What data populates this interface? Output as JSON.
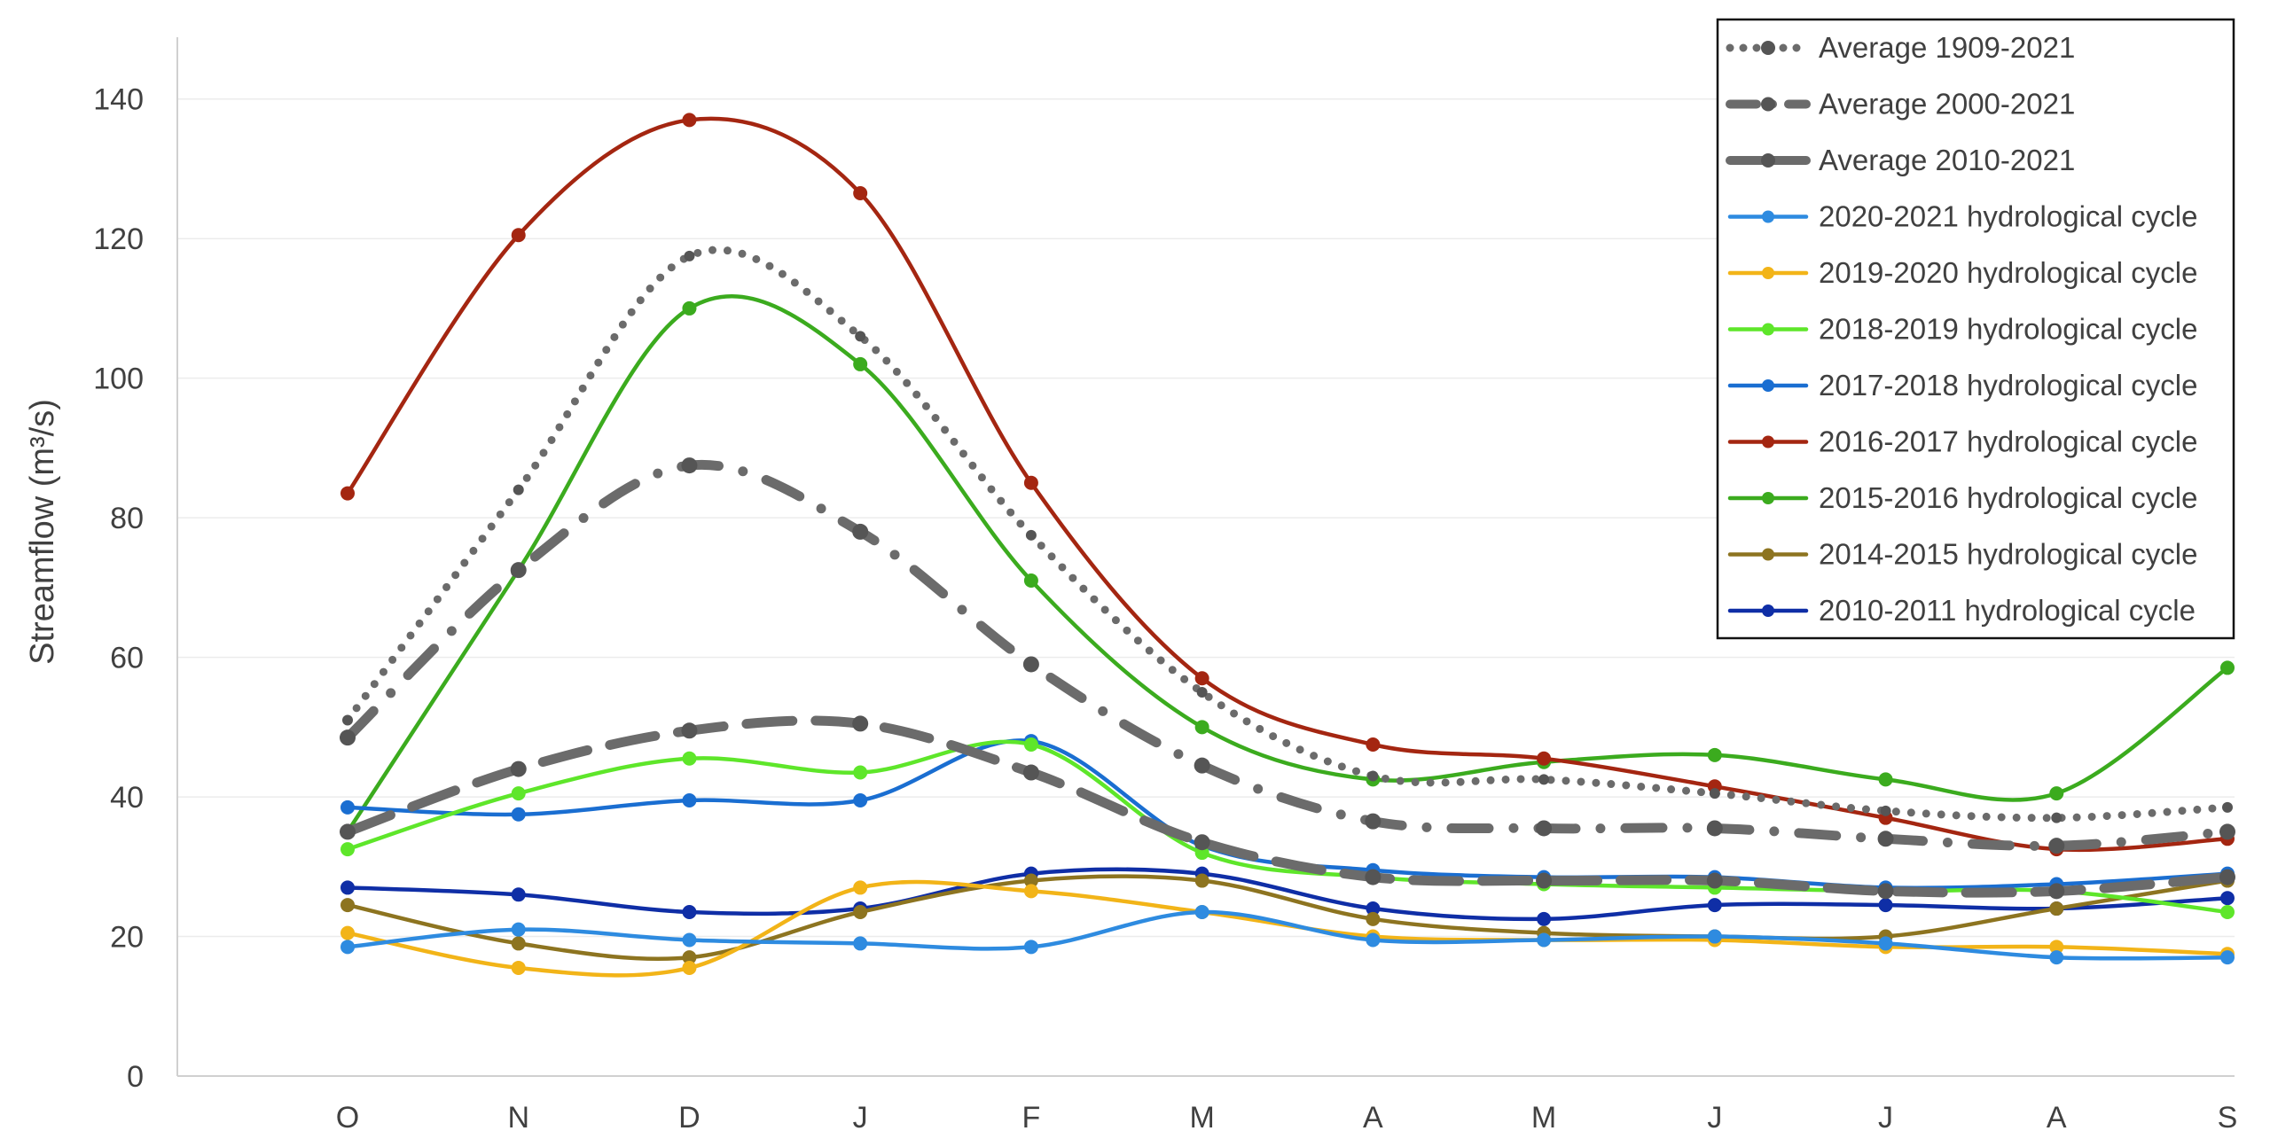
{
  "chart_data": {
    "type": "line",
    "title": "",
    "xlabel": "",
    "ylabel": "Streamflow (m³/s)",
    "ylim": [
      0,
      150
    ],
    "yticks": [
      0,
      20,
      40,
      60,
      80,
      100,
      120,
      140
    ],
    "categories": [
      "O",
      "N",
      "D",
      "J",
      "F",
      "M",
      "A",
      "M",
      "J",
      "J",
      "A",
      "S"
    ],
    "grid": "horizontal",
    "legend_position": "top-right",
    "series": [
      {
        "name": "Average 1909-2021",
        "color": "#6b6b6b",
        "style": "dotted",
        "values": [
          51,
          84,
          117.5,
          106,
          77.5,
          55,
          43,
          42.5,
          40.5,
          38,
          37,
          38.5
        ]
      },
      {
        "name": "Average 2000-2021",
        "color": "#6b6b6b",
        "style": "dashdot",
        "values": [
          48.5,
          72.5,
          87.5,
          78,
          59,
          44.5,
          36.5,
          35.5,
          35.5,
          34,
          33,
          35
        ]
      },
      {
        "name": "Average 2010-2021",
        "color": "#6b6b6b",
        "style": "dashed",
        "values": [
          35,
          44,
          49.5,
          50.5,
          43.5,
          33.5,
          28.5,
          28,
          28,
          26.5,
          26.5,
          28.5
        ]
      },
      {
        "name": "2020-2021 hydrological cycle",
        "color": "#2e8be0",
        "style": "solid",
        "values": [
          18.5,
          21,
          19.5,
          19,
          18.5,
          23.5,
          19.5,
          19.5,
          20,
          19,
          17,
          17
        ]
      },
      {
        "name": "2019-2020 hydrological cycle",
        "color": "#f2b418",
        "style": "solid",
        "values": [
          20.5,
          15.5,
          15.5,
          27,
          26.5,
          23.5,
          20,
          19.5,
          19.5,
          18.5,
          18.5,
          17.5
        ]
      },
      {
        "name": "2018-2019 hydrological cycle",
        "color": "#5ee62a",
        "style": "solid",
        "values": [
          32.5,
          40.5,
          45.5,
          43.5,
          47.5,
          32,
          28.5,
          27.5,
          27,
          26.5,
          26.5,
          23.5
        ]
      },
      {
        "name": "2017-2018 hydrological cycle",
        "color": "#1a6ed1",
        "style": "solid",
        "values": [
          38.5,
          37.5,
          39.5,
          39.5,
          48,
          33,
          29.5,
          28.5,
          28.5,
          27,
          27.5,
          29
        ]
      },
      {
        "name": "2016-2017 hydrological cycle",
        "color": "#a42611",
        "style": "solid",
        "values": [
          83.5,
          120.5,
          137,
          126.5,
          85,
          57,
          47.5,
          45.5,
          41.5,
          37,
          32.5,
          34
        ]
      },
      {
        "name": "2015-2016 hydrological cycle",
        "color": "#3bab1e",
        "style": "solid",
        "values": [
          35,
          72.5,
          110,
          102,
          71,
          50,
          42.5,
          45,
          46,
          42.5,
          40.5,
          58.5
        ]
      },
      {
        "name": "2014-2015 hydrological cycle",
        "color": "#8d7420",
        "style": "solid",
        "values": [
          24.5,
          19,
          17,
          23.5,
          28,
          28,
          22.5,
          20.5,
          20,
          20,
          24,
          28
        ]
      },
      {
        "name": "2010-2011 hydrological cycle",
        "color": "#0f2ea6",
        "style": "solid",
        "values": [
          27,
          26,
          23.5,
          24,
          29,
          29,
          24,
          22.5,
          24.5,
          24.5,
          24,
          25.5
        ]
      }
    ]
  }
}
